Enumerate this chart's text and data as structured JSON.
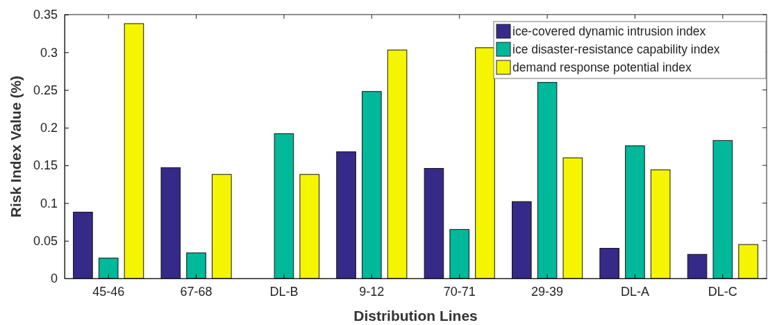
{
  "chart_data": {
    "type": "bar",
    "xlabel": "Distribution Lines",
    "ylabel": "Risk Index Value (%)",
    "categories": [
      "45-46",
      "67-68",
      "DL-B",
      "9-12",
      "70-71",
      "29-39",
      "DL-A",
      "DL-C"
    ],
    "series": [
      {
        "name": "ice-covered dynamic intrusion index",
        "color": "#352a87",
        "values": [
          0.088,
          0.147,
          0,
          0.168,
          0.146,
          0.102,
          0.04,
          0.032
        ]
      },
      {
        "name": "ice disaster-resistance capability index",
        "color": "#00b89a",
        "values": [
          0.027,
          0.034,
          0.192,
          0.248,
          0.065,
          0.26,
          0.176,
          0.183
        ]
      },
      {
        "name": "demand response potential index",
        "color": "#f5f500",
        "values": [
          0.338,
          0.138,
          0.138,
          0.303,
          0.306,
          0.16,
          0.144,
          0.045
        ]
      }
    ],
    "ylim": [
      0,
      0.35
    ],
    "yticks": [
      {
        "value": 0,
        "label": "0"
      },
      0.05,
      0.1,
      0.15,
      0.2,
      0.25,
      0.3,
      0.35
    ],
    "legend": "top right",
    "grid": false
  }
}
